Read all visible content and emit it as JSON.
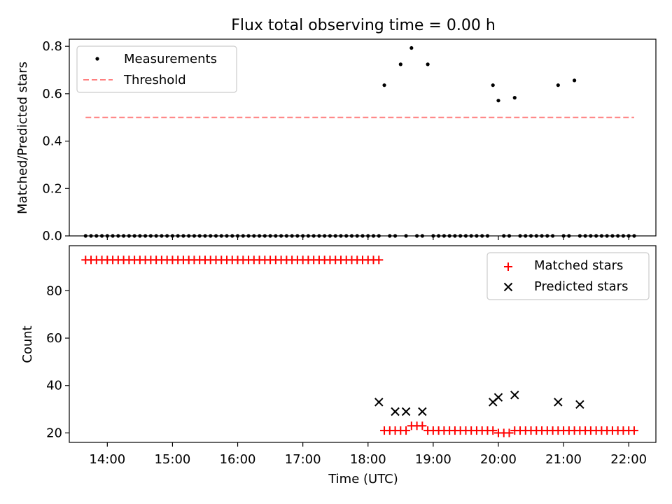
{
  "figure": {
    "title": "Flux total observing time = 0.00 h"
  },
  "chart_data": [
    {
      "type": "scatter",
      "ylabel": "Matched/Predicted stars",
      "xlabel": "",
      "xlim": [
        "13:25",
        "22:25"
      ],
      "ylim": [
        0,
        0.83
      ],
      "yticks": [
        0.0,
        0.2,
        0.4,
        0.6,
        0.8
      ],
      "ytick_labels": [
        "0.0",
        "0.2",
        "0.4",
        "0.6",
        "0.8"
      ],
      "grid": false,
      "legend": {
        "position": "upper left",
        "entries": [
          {
            "label": "Measurements",
            "marker": "dot",
            "color": "#000000"
          },
          {
            "label": "Threshold",
            "marker": "dashed-line",
            "color": "#ff7f7f"
          }
        ]
      },
      "series": [
        {
          "name": "Measurements",
          "style": "dots",
          "color": "#000000",
          "x": [
            "13:40",
            "13:45",
            "13:50",
            "13:55",
            "14:00",
            "14:05",
            "14:10",
            "14:15",
            "14:20",
            "14:25",
            "14:30",
            "14:35",
            "14:40",
            "14:45",
            "14:50",
            "14:55",
            "15:00",
            "15:05",
            "15:10",
            "15:15",
            "15:20",
            "15:25",
            "15:30",
            "15:35",
            "15:40",
            "15:45",
            "15:50",
            "15:55",
            "16:00",
            "16:05",
            "16:10",
            "16:15",
            "16:20",
            "16:25",
            "16:30",
            "16:35",
            "16:40",
            "16:45",
            "16:50",
            "16:55",
            "17:00",
            "17:05",
            "17:10",
            "17:15",
            "17:20",
            "17:25",
            "17:30",
            "17:35",
            "17:40",
            "17:45",
            "17:50",
            "17:55",
            "18:00",
            "18:05",
            "18:10",
            "18:15",
            "18:20",
            "18:25",
            "18:30",
            "18:35",
            "18:40",
            "18:45",
            "18:50",
            "18:55",
            "19:00",
            "19:05",
            "19:10",
            "19:15",
            "19:20",
            "19:25",
            "19:30",
            "19:35",
            "19:40",
            "19:45",
            "19:50",
            "19:55",
            "20:00",
            "20:05",
            "20:10",
            "20:15",
            "20:20",
            "20:25",
            "20:30",
            "20:35",
            "20:40",
            "20:45",
            "20:50",
            "20:55",
            "21:00",
            "21:05",
            "21:10",
            "21:15",
            "21:20",
            "21:25",
            "21:30",
            "21:35",
            "21:40",
            "21:45",
            "21:50",
            "21:55",
            "22:00",
            "22:05"
          ],
          "y": [
            0,
            0,
            0,
            0,
            0,
            0,
            0,
            0,
            0,
            0,
            0,
            0,
            0,
            0,
            0,
            0,
            0,
            0,
            0,
            0,
            0,
            0,
            0,
            0,
            0,
            0,
            0,
            0,
            0,
            0,
            0,
            0,
            0,
            0,
            0,
            0,
            0,
            0,
            0,
            0,
            0,
            0,
            0,
            0,
            0,
            0,
            0,
            0,
            0,
            0,
            0,
            0,
            0,
            0,
            0,
            0.636,
            0,
            0,
            0.724,
            0,
            0.793,
            0,
            0,
            0.724,
            0,
            0,
            0,
            0,
            0,
            0,
            0,
            0,
            0,
            0,
            0,
            0.636,
            0.571,
            0,
            0,
            0.583,
            0,
            0,
            0,
            0,
            0,
            0,
            0,
            0.636,
            0,
            0,
            0.656,
            0,
            0,
            0,
            0,
            0,
            0,
            0,
            0,
            0,
            0,
            0
          ]
        },
        {
          "name": "Threshold",
          "style": "dashed-line",
          "color": "#ff7f7f",
          "x": [
            "13:40",
            "22:05"
          ],
          "y": [
            0.5,
            0.5
          ]
        }
      ]
    },
    {
      "type": "scatter",
      "ylabel": "Count",
      "xlabel": "Time (UTC)",
      "xlim": [
        "13:25",
        "22:25"
      ],
      "ylim": [
        16,
        99
      ],
      "yticks": [
        20,
        40,
        60,
        80
      ],
      "ytick_labels": [
        "20",
        "40",
        "60",
        "80"
      ],
      "xticks": [
        "14:00",
        "15:00",
        "16:00",
        "17:00",
        "18:00",
        "19:00",
        "20:00",
        "21:00",
        "22:00"
      ],
      "xtick_labels": [
        "14:00",
        "15:00",
        "16:00",
        "17:00",
        "18:00",
        "19:00",
        "20:00",
        "21:00",
        "22:00"
      ],
      "grid": false,
      "legend": {
        "position": "upper right",
        "entries": [
          {
            "label": "Matched stars",
            "marker": "plus",
            "color": "#ff0000"
          },
          {
            "label": "Predicted stars",
            "marker": "x",
            "color": "#000000"
          }
        ]
      },
      "series": [
        {
          "name": "Matched stars",
          "style": "plus",
          "color": "#ff0000",
          "x": [
            "13:40",
            "13:45",
            "13:50",
            "13:55",
            "14:00",
            "14:05",
            "14:10",
            "14:15",
            "14:20",
            "14:25",
            "14:30",
            "14:35",
            "14:40",
            "14:45",
            "14:50",
            "14:55",
            "15:00",
            "15:05",
            "15:10",
            "15:15",
            "15:20",
            "15:25",
            "15:30",
            "15:35",
            "15:40",
            "15:45",
            "15:50",
            "15:55",
            "16:00",
            "16:05",
            "16:10",
            "16:15",
            "16:20",
            "16:25",
            "16:30",
            "16:35",
            "16:40",
            "16:45",
            "16:50",
            "16:55",
            "17:00",
            "17:05",
            "17:10",
            "17:15",
            "17:20",
            "17:25",
            "17:30",
            "17:35",
            "17:40",
            "17:45",
            "17:50",
            "17:55",
            "18:00",
            "18:05",
            "18:10",
            "18:15",
            "18:20",
            "18:25",
            "18:30",
            "18:35",
            "18:40",
            "18:45",
            "18:50",
            "18:55",
            "19:00",
            "19:05",
            "19:10",
            "19:15",
            "19:20",
            "19:25",
            "19:30",
            "19:35",
            "19:40",
            "19:45",
            "19:50",
            "19:55",
            "20:00",
            "20:05",
            "20:10",
            "20:15",
            "20:20",
            "20:25",
            "20:30",
            "20:35",
            "20:40",
            "20:45",
            "20:50",
            "20:55",
            "21:00",
            "21:05",
            "21:10",
            "21:15",
            "21:20",
            "21:25",
            "21:30",
            "21:35",
            "21:40",
            "21:45",
            "21:50",
            "21:55",
            "22:00",
            "22:05"
          ],
          "y": [
            93,
            93,
            93,
            93,
            93,
            93,
            93,
            93,
            93,
            93,
            93,
            93,
            93,
            93,
            93,
            93,
            93,
            93,
            93,
            93,
            93,
            93,
            93,
            93,
            93,
            93,
            93,
            93,
            93,
            93,
            93,
            93,
            93,
            93,
            93,
            93,
            93,
            93,
            93,
            93,
            93,
            93,
            93,
            93,
            93,
            93,
            93,
            93,
            93,
            93,
            93,
            93,
            93,
            93,
            93,
            21,
            21,
            21,
            21,
            21,
            23,
            23,
            23,
            21,
            21,
            21,
            21,
            21,
            21,
            21,
            21,
            21,
            21,
            21,
            21,
            21,
            20,
            20,
            20,
            21,
            21,
            21,
            21,
            21,
            21,
            21,
            21,
            21,
            21,
            21,
            21,
            21,
            21,
            21,
            21,
            21,
            21,
            21,
            21,
            21,
            21,
            21
          ]
        },
        {
          "name": "Predicted stars",
          "style": "x",
          "color": "#000000",
          "x": [
            "18:10",
            "18:25",
            "18:35",
            "18:50",
            "19:55",
            "20:00",
            "20:15",
            "20:55",
            "21:15"
          ],
          "y": [
            33,
            29,
            29,
            29,
            33,
            35,
            36,
            33,
            32
          ]
        }
      ]
    }
  ]
}
